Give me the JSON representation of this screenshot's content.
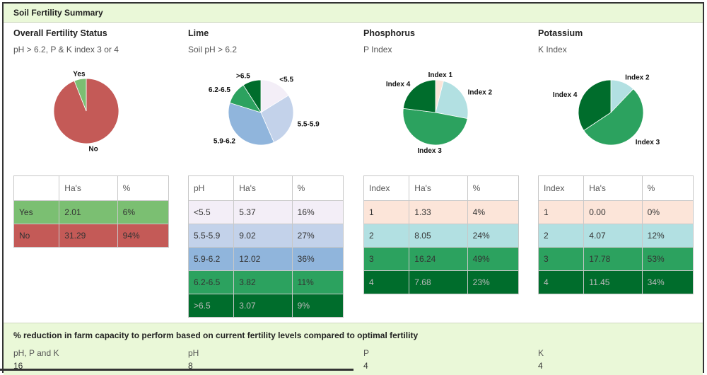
{
  "header": {
    "title": "Soil Fertility Summary"
  },
  "sections": [
    {
      "title": "Overall Fertility Status",
      "subtitle": "pH > 6.2, P & K index 3 or 4",
      "columns": [
        "",
        "Ha's",
        "%"
      ],
      "rows": [
        {
          "cells": [
            "Yes",
            "2.01",
            "6%"
          ],
          "bg": "#7bbf72",
          "fg": "#333333"
        },
        {
          "cells": [
            "No",
            "31.29",
            "94%"
          ],
          "bg": "#c45a57",
          "fg": "#333333"
        }
      ],
      "pie": [
        {
          "label": "No",
          "value": 94,
          "color": "#c45a57"
        },
        {
          "label": "Yes",
          "value": 6,
          "color": "#7bbf72"
        }
      ]
    },
    {
      "title": "Lime",
      "subtitle": "Soil pH > 6.2",
      "columns": [
        "pH",
        "Ha's",
        "%"
      ],
      "rows": [
        {
          "cells": [
            "<5.5",
            "5.37",
            "16%"
          ],
          "bg": "#f3eef7",
          "fg": "#333333"
        },
        {
          "cells": [
            "5.5-5.9",
            "9.02",
            "27%"
          ],
          "bg": "#c3d2ea",
          "fg": "#333333"
        },
        {
          "cells": [
            "5.9-6.2",
            "12.02",
            "36%"
          ],
          "bg": "#90b5dc",
          "fg": "#333333"
        },
        {
          "cells": [
            "6.2-6.5",
            "3.82",
            "11%"
          ],
          "bg": "#2ca25f",
          "fg": "#333333"
        },
        {
          "cells": [
            ">6.5",
            "3.07",
            "9%"
          ],
          "bg": "#006d2c",
          "fg": "#bbbbbb"
        }
      ],
      "pie": [
        {
          "label": "<5.5",
          "value": 16,
          "color": "#f3eef7"
        },
        {
          "label": "5.5-5.9",
          "value": 27,
          "color": "#c3d2ea"
        },
        {
          "label": "5.9-6.2",
          "value": 36,
          "color": "#90b5dc"
        },
        {
          "label": "6.2-6.5",
          "value": 11,
          "color": "#2ca25f"
        },
        {
          "label": ">6.5",
          "value": 9,
          "color": "#006d2c"
        }
      ]
    },
    {
      "title": "Phosphorus",
      "subtitle": "P Index",
      "columns": [
        "Index",
        "Ha's",
        "%"
      ],
      "rows": [
        {
          "cells": [
            "1",
            "1.33",
            "4%"
          ],
          "bg": "#fce5d9",
          "fg": "#333333"
        },
        {
          "cells": [
            "2",
            "8.05",
            "24%"
          ],
          "bg": "#b2e0e2",
          "fg": "#333333"
        },
        {
          "cells": [
            "3",
            "16.24",
            "49%"
          ],
          "bg": "#2ca25f",
          "fg": "#333333"
        },
        {
          "cells": [
            "4",
            "7.68",
            "23%"
          ],
          "bg": "#006d2c",
          "fg": "#bbbbbb"
        }
      ],
      "pie": [
        {
          "label": "Index 1",
          "value": 4,
          "color": "#fce5d9"
        },
        {
          "label": "Index 2",
          "value": 24,
          "color": "#b2e0e2"
        },
        {
          "label": "Index 3",
          "value": 49,
          "color": "#2ca25f"
        },
        {
          "label": "Index 4",
          "value": 23,
          "color": "#006d2c"
        }
      ]
    },
    {
      "title": "Potassium",
      "subtitle": "K Index",
      "columns": [
        "Index",
        "Ha's",
        "%"
      ],
      "rows": [
        {
          "cells": [
            "1",
            "0.00",
            "0%"
          ],
          "bg": "#fce5d9",
          "fg": "#333333"
        },
        {
          "cells": [
            "2",
            "4.07",
            "12%"
          ],
          "bg": "#b2e0e2",
          "fg": "#333333"
        },
        {
          "cells": [
            "3",
            "17.78",
            "53%"
          ],
          "bg": "#2ca25f",
          "fg": "#333333"
        },
        {
          "cells": [
            "4",
            "11.45",
            "34%"
          ],
          "bg": "#006d2c",
          "fg": "#bbbbbb"
        }
      ],
      "pie": [
        {
          "label": "",
          "value": 0,
          "color": "#fce5d9"
        },
        {
          "label": "Index 2",
          "value": 12,
          "color": "#b2e0e2"
        },
        {
          "label": "Index 3",
          "value": 53,
          "color": "#2ca25f"
        },
        {
          "label": "Index 4",
          "value": 34,
          "color": "#006d2c"
        }
      ]
    }
  ],
  "footer": {
    "title": "% reduction in farm capacity to perform based on current fertility levels compared to optimal fertility",
    "items": [
      {
        "label": "pH, P and K",
        "value": "16"
      },
      {
        "label": "pH",
        "value": "8"
      },
      {
        "label": "P",
        "value": "4"
      },
      {
        "label": "K",
        "value": "4"
      }
    ]
  }
}
